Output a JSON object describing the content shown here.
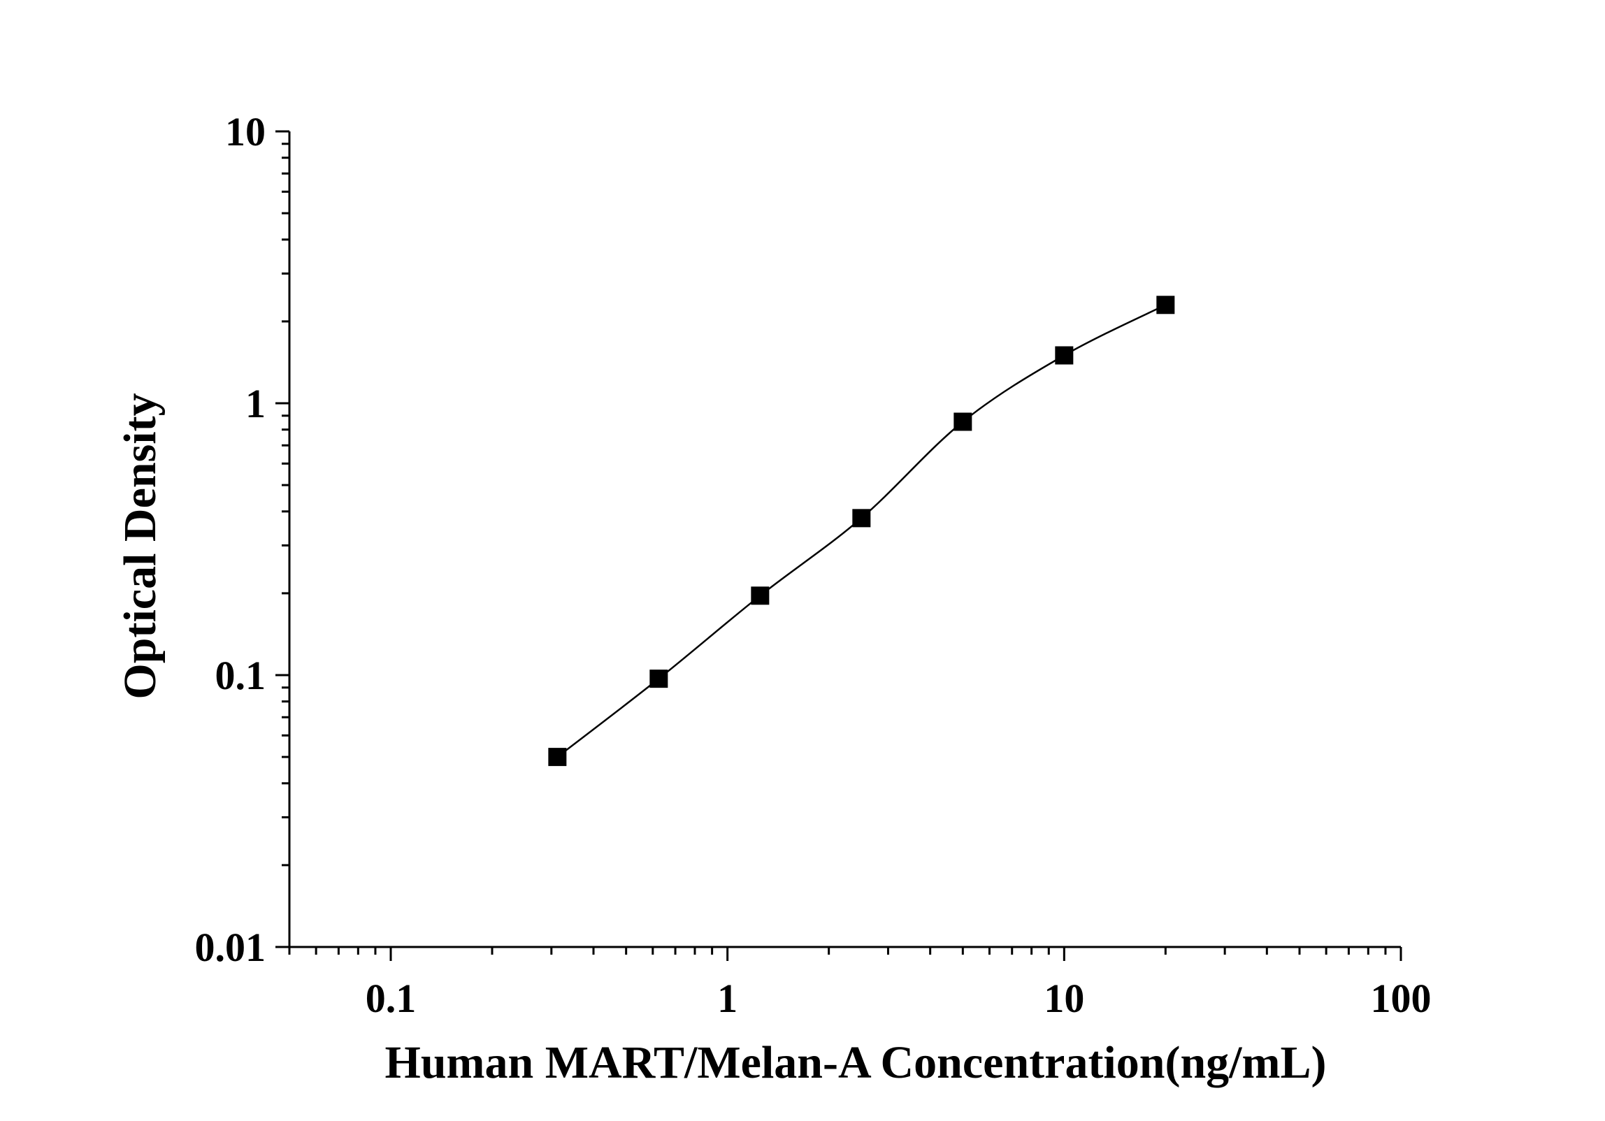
{
  "chart_data": {
    "type": "scatter",
    "title": "",
    "xlabel": "Human MART/Melan-A Concentration(ng/mL)",
    "ylabel": "Optical Density",
    "xscale": "log",
    "yscale": "log",
    "xlim": [
      0.05,
      100
    ],
    "ylim": [
      0.01,
      10
    ],
    "x_ticks": [
      {
        "value": 0.1,
        "label": "0.1"
      },
      {
        "value": 1,
        "label": "1"
      },
      {
        "value": 10,
        "label": "10"
      },
      {
        "value": 100,
        "label": "100"
      }
    ],
    "y_ticks": [
      {
        "value": 0.01,
        "label": "0.01"
      },
      {
        "value": 0.1,
        "label": "0.1"
      },
      {
        "value": 1,
        "label": "1"
      },
      {
        "value": 10,
        "label": "10"
      }
    ],
    "grid": false,
    "legend": "none",
    "marker": "square",
    "connected": true,
    "color": "#000000",
    "x": [
      0.3125,
      0.625,
      1.25,
      2.5,
      5,
      10,
      20
    ],
    "y": [
      0.05,
      0.097,
      0.196,
      0.378,
      0.855,
      1.5,
      2.3
    ]
  }
}
